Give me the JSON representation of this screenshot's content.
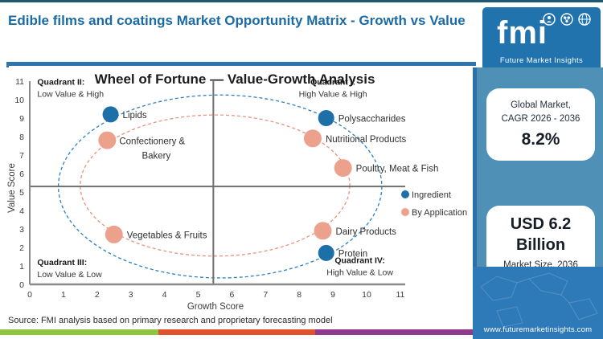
{
  "header": {
    "title": "Edible films and coatings Market Opportunity Matrix - Growth vs Value"
  },
  "logo": {
    "brand": "fmi",
    "tagline": "Future Market Insights"
  },
  "sidebar": {
    "cagr_card": {
      "label_line1": "Global Market,",
      "label_line2": "CAGR 2026 - 2036",
      "value": "8.2%"
    },
    "size_card": {
      "value_line1": "USD 6.2",
      "value_line2": "Billion",
      "label": "Market Size, 2036"
    },
    "website": "www.futuremarketinsights.com"
  },
  "footer": {
    "source": "Source: FMI analysis based on primary research and proprietary forecasting model"
  },
  "colors": {
    "header_blue": "#1a6ba6",
    "accent_bar": "#2e75ad",
    "panel_teal": "#4e90b6",
    "panel_blue": "#2e79b8",
    "ingredient": "#1d6fa8",
    "application": "#eba18c",
    "stripe_green": "#8dc63f",
    "stripe_orange": "#e0532c",
    "stripe_purple": "#8f3a8c"
  },
  "chart_data": {
    "type": "scatter",
    "title": "Wheel of Fortune — Value-Growth Analysis",
    "xlabel": "Growth Score",
    "ylabel": "Value Score",
    "xlim": [
      0,
      11
    ],
    "ylim": [
      0,
      11
    ],
    "x_ticks": [
      0,
      1,
      2,
      3,
      4,
      5,
      6,
      7,
      8,
      9,
      10,
      11
    ],
    "y_ticks": [
      0,
      1,
      2,
      3,
      4,
      5,
      6,
      7,
      8,
      9,
      10,
      11
    ],
    "grid": false,
    "legend_position": "right",
    "divider": {
      "x": 5.45,
      "y": 5.3
    },
    "quadrants": [
      {
        "title": "Quadrant II:",
        "subtitle": "Low Value & High",
        "align": "left",
        "x": 0.2,
        "y": 10.8
      },
      {
        "title": "Quadrant I:",
        "subtitle": "High Value & High",
        "align": "middle",
        "x": 9.0,
        "y": 10.8
      },
      {
        "title": "Quadrant III:",
        "subtitle": "Low Value & Low",
        "align": "left",
        "x": 0.2,
        "y": 1.05
      },
      {
        "title": "Quadrant IV:",
        "subtitle": "High Value & Low",
        "align": "middle",
        "x": 9.8,
        "y": 1.15
      }
    ],
    "ellipses": [
      {
        "name": "ingredient-ring",
        "cx": 5.65,
        "cy": 5.3,
        "rx": 4.8,
        "ry": 4.95,
        "color": "#2d7fc1"
      },
      {
        "name": "application-ring",
        "cx": 5.5,
        "cy": 5.35,
        "rx": 4.0,
        "ry": 3.82,
        "color": "#e8937c"
      }
    ],
    "series": [
      {
        "name": "Ingredient",
        "color": "#1d6fa8",
        "marker_radius": 10,
        "points": [
          {
            "label": "Lipids",
            "x": 2.4,
            "y": 9.2
          },
          {
            "label": "Polysaccharides",
            "x": 8.8,
            "y": 9.0
          },
          {
            "label": "Protein",
            "x": 8.8,
            "y": 1.7
          }
        ]
      },
      {
        "name": "By Application",
        "color": "#eba18c",
        "marker_radius": 11,
        "points": [
          {
            "label": "Confectionery & Bakery",
            "label_lines": [
              "Confectionery &",
              "Bakery"
            ],
            "x": 2.3,
            "y": 7.8
          },
          {
            "label": "Nutritional Products",
            "x": 8.4,
            "y": 7.9
          },
          {
            "label": "Poultry, Meat & Fish",
            "x": 9.3,
            "y": 6.3
          },
          {
            "label": "Vegetables & Fruits",
            "x": 2.5,
            "y": 2.7
          },
          {
            "label": "Dairy Products",
            "x": 8.7,
            "y": 2.9
          }
        ]
      }
    ]
  }
}
